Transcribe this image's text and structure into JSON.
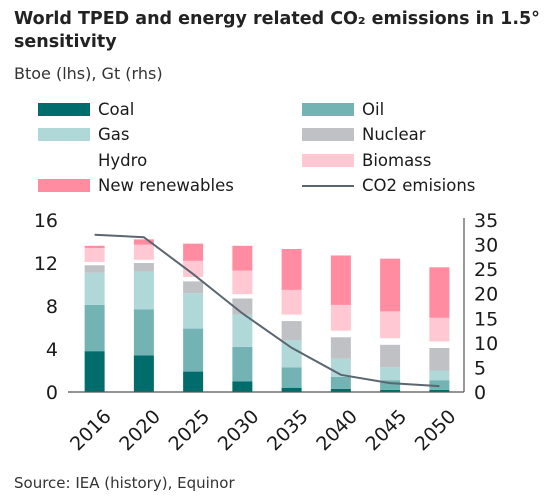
{
  "title": "World TPED and energy related CO₂ emissions in 1.5° sensitivity",
  "subtitle": "Btoe (lhs), Gt (rhs)",
  "source": "Source: IEA (history), Equinor",
  "colors": {
    "coal": "#006c6c",
    "oil": "#74b3b3",
    "gas": "#b1d8d9",
    "nuclear": "#c0c1c5",
    "hydro": "#ffffff",
    "biomass": "#ffc8d2",
    "new_renewables": "#ff8ca0",
    "co2": "#5b6670",
    "axis": "#555555"
  },
  "legend": [
    {
      "label": "Coal",
      "key": "coal",
      "kind": "swatch"
    },
    {
      "label": "Oil",
      "key": "oil",
      "kind": "swatch"
    },
    {
      "label": "Gas",
      "key": "gas",
      "kind": "swatch"
    },
    {
      "label": "Nuclear",
      "key": "nuclear",
      "kind": "swatch"
    },
    {
      "label": "Hydro",
      "key": "hydro",
      "kind": "swatch"
    },
    {
      "label": "Biomass",
      "key": "biomass",
      "kind": "swatch"
    },
    {
      "label": "New renewables",
      "key": "new_renewables",
      "kind": "swatch"
    },
    {
      "label": "CO2 emisions",
      "key": "co2",
      "kind": "line"
    }
  ],
  "chart_data": {
    "type": "bar",
    "stacked": true,
    "categories": [
      "2016",
      "2020",
      "2025",
      "2030",
      "2035",
      "2040",
      "2045",
      "2050"
    ],
    "series": [
      {
        "name": "Coal",
        "key": "coal",
        "values": [
          3.8,
          3.4,
          1.9,
          1.0,
          0.4,
          0.3,
          0.2,
          0.2
        ]
      },
      {
        "name": "Oil",
        "key": "oil",
        "values": [
          4.3,
          4.3,
          4.0,
          3.2,
          1.9,
          1.1,
          0.9,
          0.9
        ]
      },
      {
        "name": "Gas",
        "key": "gas",
        "values": [
          3.0,
          3.5,
          3.3,
          3.0,
          2.5,
          1.7,
          1.2,
          0.9
        ]
      },
      {
        "name": "Nuclear",
        "key": "nuclear",
        "values": [
          0.7,
          0.8,
          1.1,
          1.5,
          1.8,
          2.0,
          2.1,
          2.1
        ]
      },
      {
        "name": "Hydro",
        "key": "hydro",
        "values": [
          0.3,
          0.3,
          0.4,
          0.4,
          0.6,
          0.6,
          0.6,
          0.6
        ]
      },
      {
        "name": "Biomass",
        "key": "biomass",
        "values": [
          1.3,
          1.4,
          1.5,
          2.2,
          2.3,
          2.4,
          2.5,
          2.2
        ]
      },
      {
        "name": "New renewables",
        "key": "new_renewables",
        "values": [
          0.2,
          0.5,
          1.6,
          2.3,
          3.8,
          4.6,
          4.9,
          4.7
        ]
      }
    ],
    "line_series": {
      "name": "CO2 emisions",
      "key": "co2",
      "axis": "right",
      "values": [
        32.0,
        31.5,
        24.0,
        16.0,
        9.0,
        3.5,
        1.8,
        1.2
      ]
    },
    "y_left": {
      "min": 0,
      "max": 16,
      "ticks": [
        0,
        4,
        8,
        12,
        16
      ]
    },
    "y_right": {
      "min": 0,
      "max": 35,
      "ticks": [
        0,
        5,
        10,
        15,
        20,
        25,
        30,
        35
      ]
    },
    "grid": false
  }
}
